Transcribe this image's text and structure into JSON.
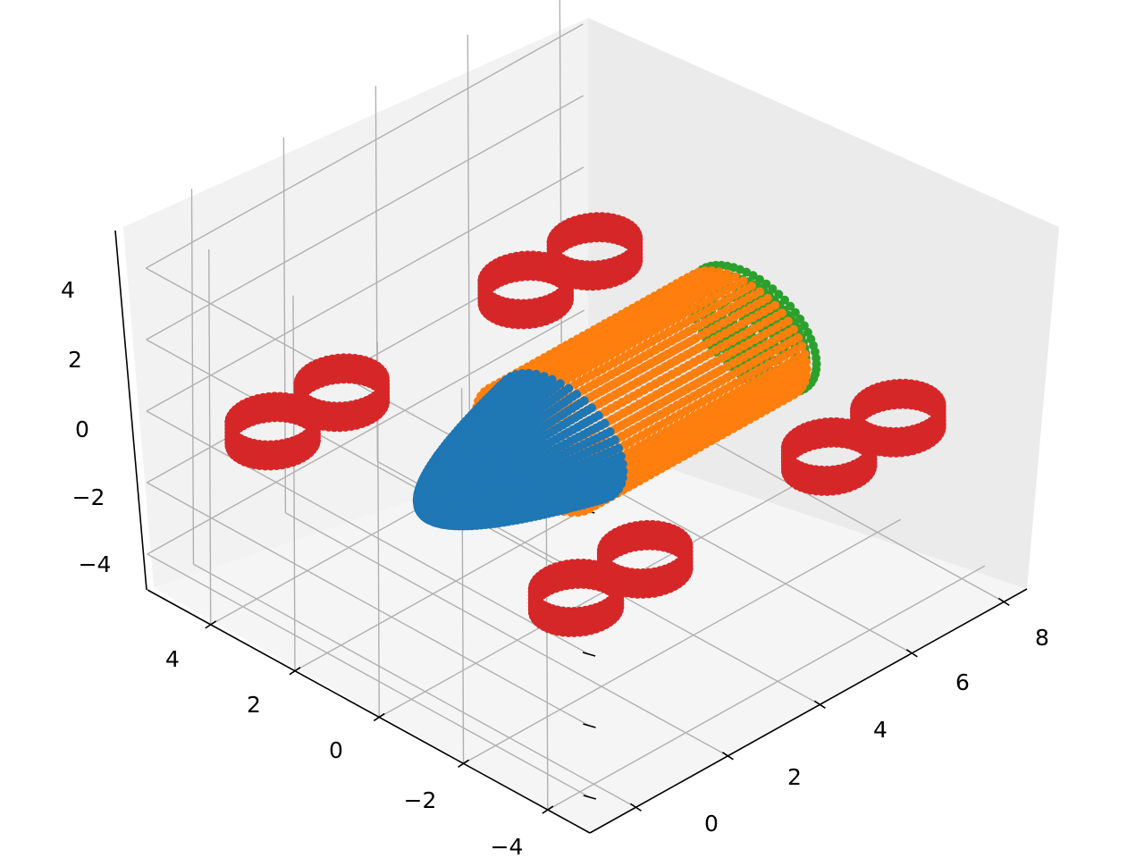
{
  "chart_data": {
    "type": "scatter",
    "projection": "3d",
    "title": "",
    "xlabel": "",
    "ylabel": "",
    "zlabel": "",
    "xlim": [
      -1,
      8.5
    ],
    "ylim": [
      -5,
      5.5
    ],
    "zlim": [
      -5,
      5.5
    ],
    "x_ticks": [
      0,
      2,
      4,
      6,
      8
    ],
    "y_ticks": [
      -4,
      -2,
      0,
      2,
      4
    ],
    "z_ticks": [
      -4,
      -2,
      0,
      2,
      4
    ],
    "x_tick_labels": [
      "0",
      "2",
      "4",
      "6",
      "8"
    ],
    "y_tick_labels": [
      "−4",
      "−2",
      "0",
      "2",
      "4"
    ],
    "z_tick_labels": [
      "−4",
      "−2",
      "0",
      "2",
      "4"
    ],
    "grid": true,
    "legend": "none",
    "series": [
      {
        "shape": "paraboloid-nose",
        "color": "#1f77b4",
        "x_range": [
          0,
          3
        ],
        "radius": 1.5,
        "z_center": 0
      },
      {
        "shape": "cylinder-body",
        "color": "#ff7f0e",
        "x_range": [
          2.5,
          7
        ],
        "radius": 1.5,
        "z_center": 0
      },
      {
        "shape": "tail-cap",
        "color": "#2ca02c",
        "x": 7,
        "radius": 1.5,
        "z_center": 0
      },
      {
        "shape": "rings",
        "color": "#d62728",
        "rings": [
          {
            "x": 0.0,
            "y": 3.6,
            "z": 0
          },
          {
            "x": 1.5,
            "y": 3.6,
            "z": 0
          },
          {
            "x": 5.5,
            "y": 3.6,
            "z": 0
          },
          {
            "x": 7.0,
            "y": 3.6,
            "z": 0
          },
          {
            "x": 0.0,
            "y": -3.6,
            "z": 0
          },
          {
            "x": 1.5,
            "y": -3.6,
            "z": 0
          },
          {
            "x": 5.5,
            "y": -3.6,
            "z": 0
          },
          {
            "x": 7.0,
            "y": -3.6,
            "z": 0
          }
        ],
        "radius": 0.7
      }
    ]
  }
}
